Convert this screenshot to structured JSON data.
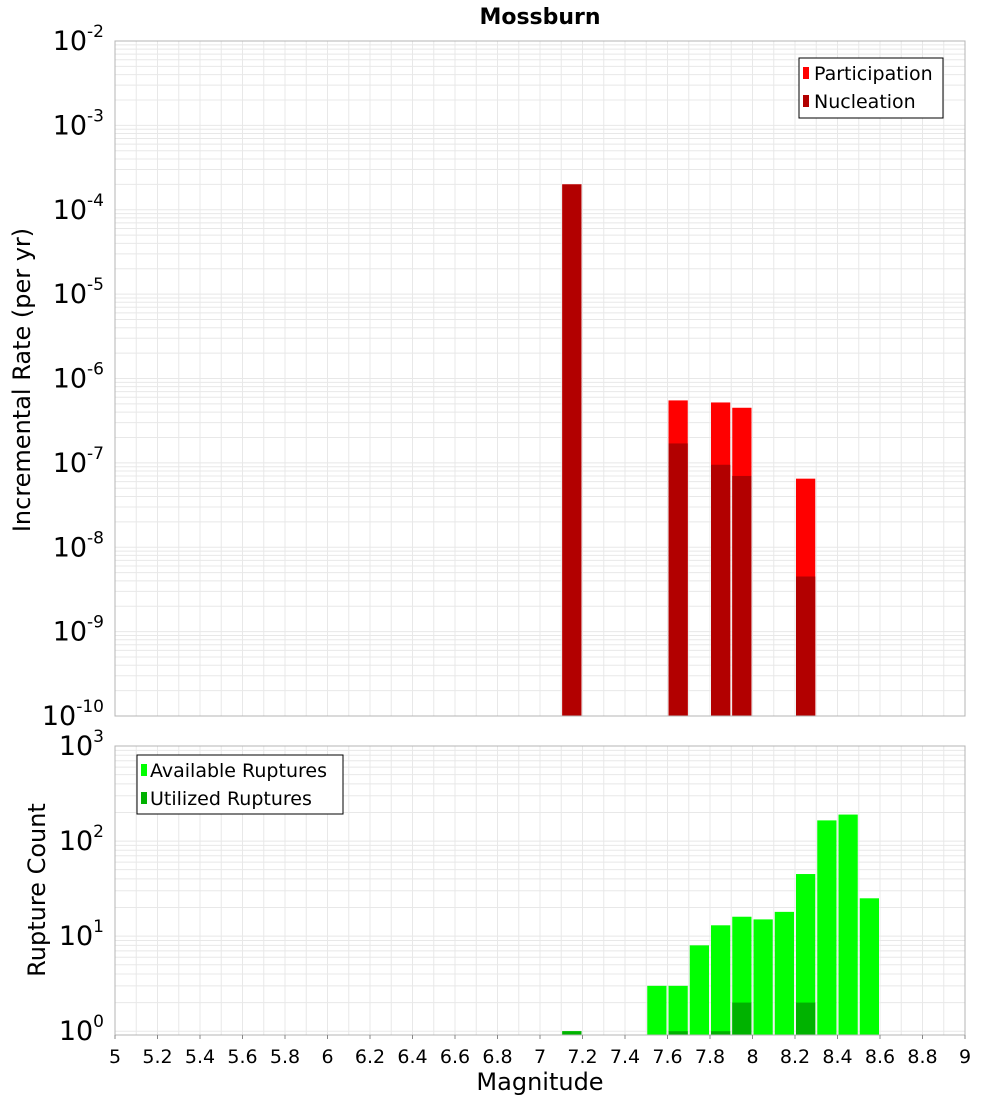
{
  "chart_data": [
    {
      "type": "bar",
      "title": "Mossburn",
      "xlabel": "",
      "ylabel": "Incremental Rate (per yr)",
      "yscale": "log",
      "ylim_exponents": [
        -10,
        -2
      ],
      "y_tick_exponents": [
        -10,
        -9,
        -8,
        -7,
        -6,
        -5,
        -4,
        -3,
        -2
      ],
      "xlim": [
        5,
        9
      ],
      "bin_width": 0.1,
      "legend_position": "top-right",
      "series": [
        {
          "name": "Participation",
          "color": "#ff0000",
          "points": [
            {
              "x": 7.15,
              "y": 0.0002
            },
            {
              "x": 7.65,
              "y": 5.5e-07
            },
            {
              "x": 7.85,
              "y": 5.2e-07
            },
            {
              "x": 7.95,
              "y": 4.5e-07
            },
            {
              "x": 8.25,
              "y": 6.5e-08
            }
          ]
        },
        {
          "name": "Nucleation",
          "color": "#b20000",
          "points": [
            {
              "x": 7.15,
              "y": 0.0002
            },
            {
              "x": 7.65,
              "y": 1.7e-07
            },
            {
              "x": 7.85,
              "y": 9.5e-08
            },
            {
              "x": 7.95,
              "y": 7e-08
            },
            {
              "x": 8.25,
              "y": 4.5e-09
            }
          ]
        }
      ]
    },
    {
      "type": "bar",
      "title": "",
      "xlabel": "Magnitude",
      "ylabel": "Rupture Count",
      "yscale": "log",
      "ylim_exponents": [
        -0.04,
        3
      ],
      "y_tick_exponents": [
        0,
        1,
        2,
        3
      ],
      "xlim": [
        5,
        9
      ],
      "x_ticks": [
        "5",
        "5.2",
        "5.4",
        "5.6",
        "5.8",
        "6",
        "6.2",
        "6.4",
        "6.6",
        "6.8",
        "7",
        "7.2",
        "7.4",
        "7.6",
        "7.8",
        "8",
        "8.2",
        "8.4",
        "8.6",
        "8.8",
        "9"
      ],
      "bin_width": 0.1,
      "legend_position": "top-left",
      "series": [
        {
          "name": "Available Ruptures",
          "color": "#00ff00",
          "points": [
            {
              "x": 7.15,
              "y": 1
            },
            {
              "x": 7.55,
              "y": 3
            },
            {
              "x": 7.65,
              "y": 3
            },
            {
              "x": 7.75,
              "y": 8
            },
            {
              "x": 7.85,
              "y": 13
            },
            {
              "x": 7.95,
              "y": 16
            },
            {
              "x": 8.05,
              "y": 15
            },
            {
              "x": 8.15,
              "y": 18
            },
            {
              "x": 8.25,
              "y": 45
            },
            {
              "x": 8.35,
              "y": 165
            },
            {
              "x": 8.45,
              "y": 190
            },
            {
              "x": 8.55,
              "y": 25
            }
          ]
        },
        {
          "name": "Utilized Ruptures",
          "color": "#00b200",
          "points": [
            {
              "x": 7.15,
              "y": 1
            },
            {
              "x": 7.65,
              "y": 1
            },
            {
              "x": 7.85,
              "y": 1
            },
            {
              "x": 7.95,
              "y": 2
            },
            {
              "x": 8.25,
              "y": 2
            }
          ]
        }
      ]
    }
  ]
}
